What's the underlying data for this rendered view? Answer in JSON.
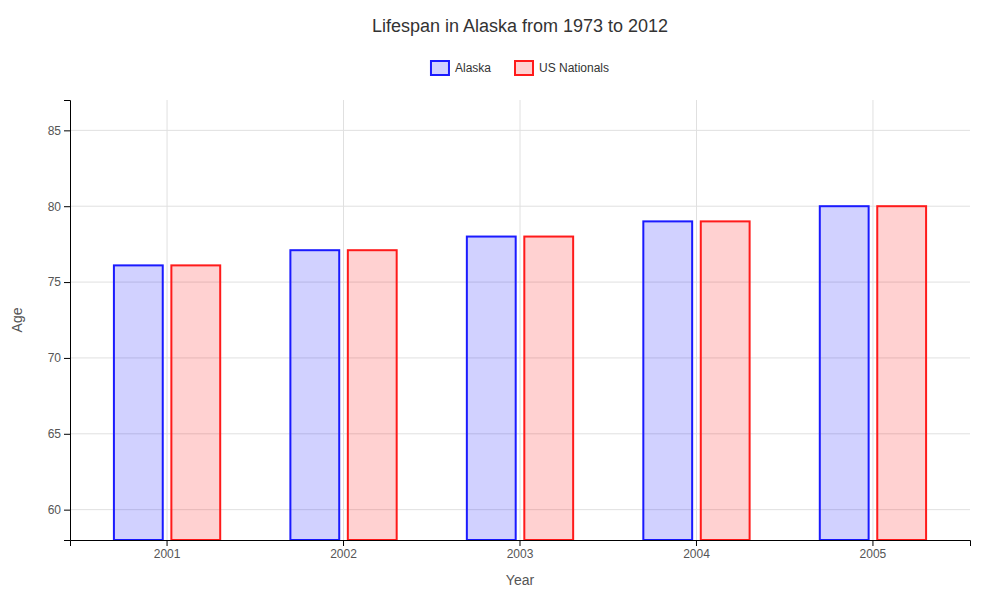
{
  "chart_data": {
    "type": "bar",
    "title": "Lifespan in Alaska from 1973 to 2012",
    "xlabel": "Year",
    "ylabel": "Age",
    "categories": [
      "2001",
      "2002",
      "2003",
      "2004",
      "2005"
    ],
    "series": [
      {
        "name": "Alaska",
        "color": "#1a1aff",
        "values": [
          76.1,
          77.1,
          78.0,
          79.0,
          80.0
        ]
      },
      {
        "name": "US Nationals",
        "color": "#ff1a1a",
        "values": [
          76.1,
          77.1,
          78.0,
          79.0,
          80.0
        ]
      }
    ],
    "ylim": [
      58,
      87
    ],
    "yticks": [
      60,
      65,
      70,
      75,
      80,
      85
    ],
    "grid": true,
    "legend": "top"
  }
}
